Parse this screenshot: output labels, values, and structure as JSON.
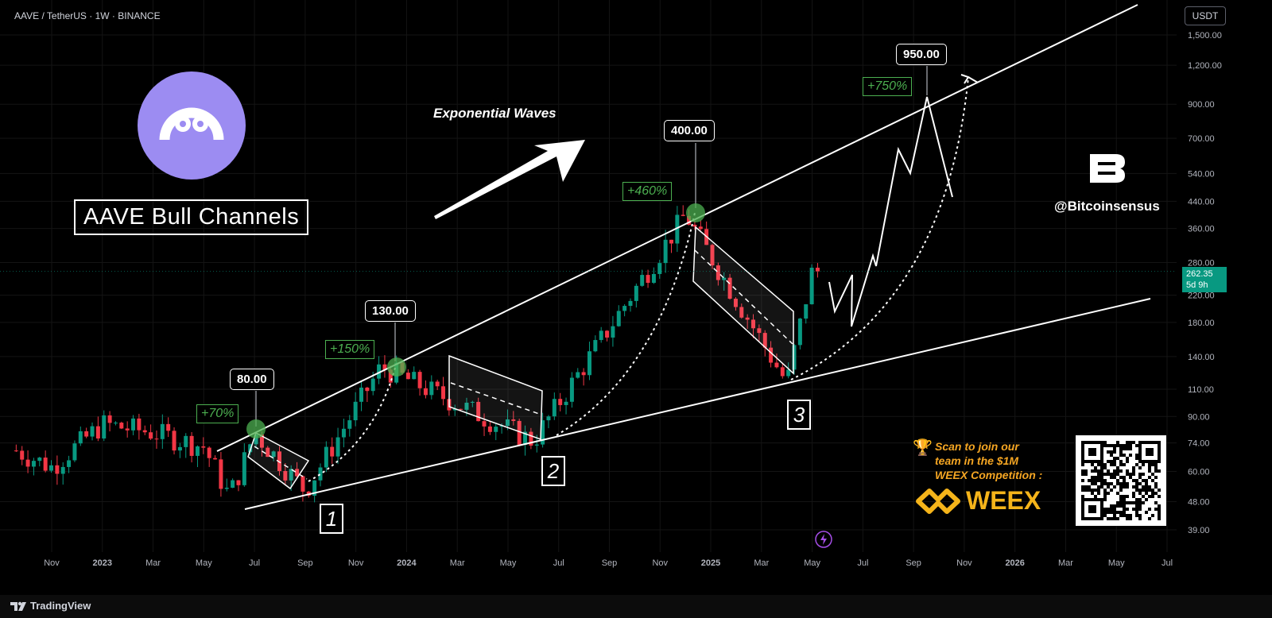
{
  "header": {
    "symbol_line": "AAVE / TetherUS · 1W · BINANCE",
    "currency": "USDT"
  },
  "price_tag": {
    "price": "262.35",
    "countdown": "5d 9h"
  },
  "footer": {
    "brand": "TradingView"
  },
  "colors": {
    "up": "#089981",
    "down": "#f23645",
    "highlight": "#4caf50",
    "weex": "#f5b41a"
  },
  "icons": [
    "aave-ghost-icon",
    "bitcoinsensus-logo-icon",
    "trophy-icon",
    "weex-logo-icon",
    "lightning-icon",
    "tradingview-logo-icon"
  ],
  "annotations": {
    "title": "AAVE Bull Channels",
    "exponential": "Exponential Waves",
    "handle": "@Bitcoinsensus",
    "promo_line1": "Scan to join our",
    "promo_line2": "team in the $1M",
    "promo_line3": "WEEX Competition :",
    "weex": "WEEX",
    "waves": [
      "1",
      "2",
      "3"
    ],
    "targets": [
      "80.00",
      "130.00",
      "400.00",
      "950.00"
    ],
    "gains": [
      "+70%",
      "+150%",
      "+460%",
      "+750%"
    ]
  },
  "chart_data": {
    "type": "candlestick",
    "scale": "log",
    "ylim": [
      36,
      1800
    ],
    "y_ticks": [
      "1,500.00",
      "1,200.00",
      "900.00",
      "700.00",
      "540.00",
      "440.00",
      "360.00",
      "280.00",
      "220.00",
      "180.00",
      "140.00",
      "110.00",
      "90.00",
      "74.00",
      "60.00",
      "48.00",
      "39.00"
    ],
    "y_tick_values": [
      1500,
      1200,
      900,
      700,
      540,
      440,
      360,
      280,
      220,
      180,
      140,
      110,
      90,
      74,
      60,
      48,
      39
    ],
    "x_ticks": [
      "Nov",
      "2023",
      "Mar",
      "May",
      "Jul",
      "Sep",
      "Nov",
      "2024",
      "Mar",
      "May",
      "Jul",
      "Sep",
      "Nov",
      "2025",
      "Mar",
      "May",
      "Jul",
      "Sep",
      "Nov",
      "2026",
      "Mar",
      "May",
      "Jul"
    ],
    "x_tick_dates": [
      "2022-11",
      "2023-01",
      "2023-03",
      "2023-05",
      "2023-07",
      "2023-09",
      "2023-11",
      "2024-01",
      "2024-03",
      "2024-05",
      "2024-07",
      "2024-09",
      "2024-11",
      "2025-01",
      "2025-03",
      "2025-05",
      "2025-07",
      "2025-09",
      "2025-11",
      "2026-01",
      "2026-03",
      "2026-05",
      "2026-07"
    ],
    "key_points": [
      {
        "date": "2023-06",
        "price": 50
      },
      {
        "date": "2023-07",
        "price": 80
      },
      {
        "date": "2023-09",
        "price": 52
      },
      {
        "date": "2023-12",
        "price": 130
      },
      {
        "date": "2024-06",
        "price": 75
      },
      {
        "date": "2024-12",
        "price": 400
      },
      {
        "date": "2025-04",
        "price": 115
      },
      {
        "date": "2025-05",
        "price": 262.35
      },
      {
        "date": "2025-09",
        "price": 950
      }
    ],
    "current_price": 262.35
  }
}
